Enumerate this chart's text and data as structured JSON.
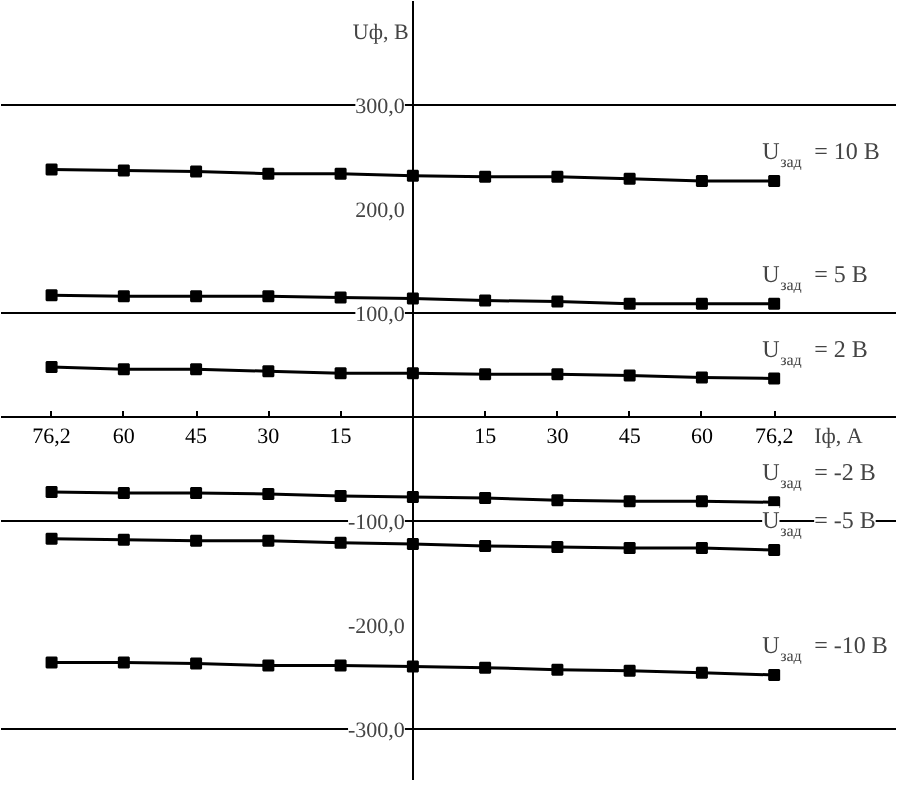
{
  "chart_data": {
    "type": "line",
    "xlabel": "Iф, A",
    "ylabel": "Uф, В",
    "categories": [
      "76,2",
      "60",
      "45",
      "30",
      "15",
      null,
      "15",
      "30",
      "45",
      "60",
      "76,2"
    ],
    "series": [
      {
        "name": "U$_{зад}$= 10 В",
        "color": "#000000",
        "values": [
          238,
          237,
          236,
          234,
          234,
          232,
          231,
          231,
          229,
          227,
          227
        ]
      },
      {
        "name": "U$_{зад}$= 5 В",
        "color": "#000000",
        "values": [
          117,
          116,
          116,
          116,
          115,
          114,
          112,
          111,
          109,
          109,
          109
        ]
      },
      {
        "name": "U$_{зад}$= 2 В",
        "color": "#000000",
        "values": [
          48,
          46,
          46,
          44,
          42,
          42,
          41,
          41,
          40,
          38,
          37
        ]
      },
      {
        "name": "U$_{зад}$= -2 В",
        "color": "#000000",
        "values": [
          -72,
          -73,
          -73,
          -74,
          -76,
          -77,
          -78,
          -80,
          -81,
          -81,
          -82
        ]
      },
      {
        "name": "U$_{зад}$= -5 В",
        "color": "#000000",
        "values": [
          -117,
          -118,
          -119,
          -119,
          -121,
          -122,
          -124,
          -125,
          -126,
          -126,
          -128
        ]
      },
      {
        "name": "U$_{зад}$= -10 В",
        "color": "#000000",
        "values": [
          -236,
          -236,
          -237,
          -239,
          -239,
          -240,
          -241,
          -243,
          -244,
          -246,
          -248
        ]
      }
    ],
    "ylim": [
      -350,
      400
    ],
    "yticks": [
      {
        "value": 300,
        "label": "300,0"
      },
      {
        "value": 200,
        "label": "200,0"
      },
      {
        "value": 100,
        "label": "100,0"
      },
      {
        "value": -100,
        "label": "-100,0"
      },
      {
        "value": -200,
        "label": "-200,0"
      },
      {
        "value": -300,
        "label": "-300,0"
      }
    ],
    "ref_lines": [
      {
        "axis": "y",
        "value": 300,
        "color": "#000000"
      },
      {
        "axis": "y",
        "value": 100,
        "color": "#000000"
      },
      {
        "axis": "y",
        "value": -100,
        "color": "#000000"
      },
      {
        "axis": "y",
        "value": -300,
        "color": "#000000"
      }
    ],
    "marker": "square",
    "line_style": "solid"
  }
}
